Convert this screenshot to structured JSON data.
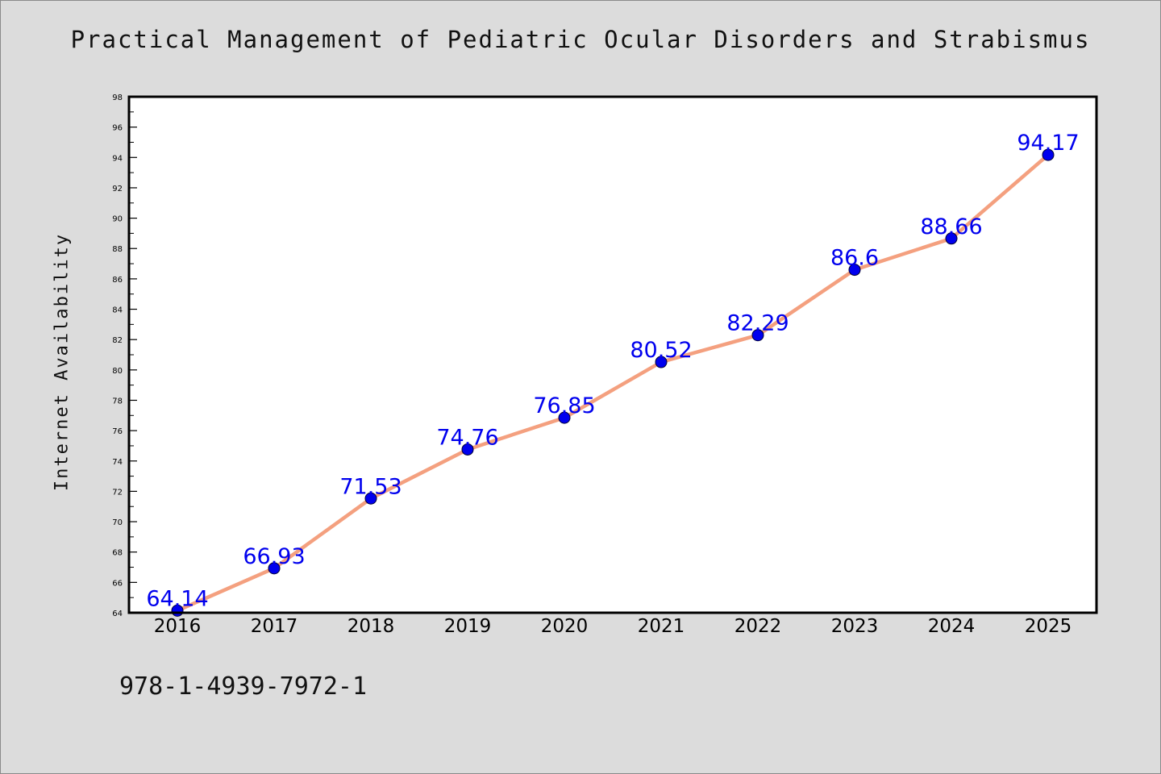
{
  "chart_data": {
    "type": "line",
    "title": "Practical Management of Pediatric Ocular Disorders and Strabismus",
    "xlabel": "",
    "ylabel": "Internet Availability",
    "categories": [
      "2016",
      "2017",
      "2018",
      "2019",
      "2020",
      "2021",
      "2022",
      "2023",
      "2024",
      "2025"
    ],
    "series": [
      {
        "values": [
          64.14,
          66.93,
          71.53,
          74.76,
          76.85,
          80.52,
          82.29,
          86.6,
          88.66,
          94.17
        ]
      }
    ],
    "data_labels": [
      "64.14",
      "66.93",
      "71.53",
      "74.76",
      "76.85",
      "80.52",
      "82.29",
      "86.6",
      "88.66",
      "94.17"
    ],
    "ylim": [
      64,
      98
    ],
    "yticks": [
      64,
      66,
      68,
      70,
      72,
      74,
      76,
      78,
      80,
      82,
      84,
      86,
      88,
      90,
      92,
      94,
      96,
      98
    ],
    "grid": false,
    "legend": "none",
    "colors": {
      "line": "#f4a07f",
      "marker": "#0000ee",
      "label": "#0000ee",
      "background": "#dcdcdc",
      "plot_background": "#ffffff"
    }
  },
  "footnote": "978-1-4939-7972-1"
}
